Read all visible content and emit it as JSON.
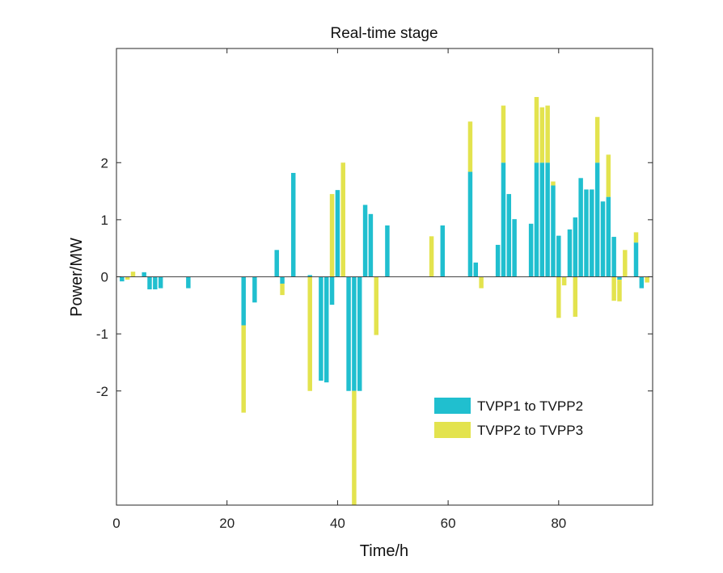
{
  "chart_data": {
    "type": "bar",
    "stacked": true,
    "title": "Real-time stage",
    "xlabel": "Time/h",
    "ylabel": "Power/MW",
    "xlim": [
      0,
      97
    ],
    "ylim": [
      -4,
      4
    ],
    "xticks": [
      0,
      20,
      40,
      60,
      80
    ],
    "yticks": [
      -2,
      -1,
      0,
      1,
      2
    ],
    "xtick_labels": [
      "0",
      "20",
      "40",
      "60",
      "80"
    ],
    "ytick_labels": [
      "-2",
      "-1",
      "0",
      "1",
      "2"
    ],
    "grid": false,
    "legend_position": "bottom-right",
    "x": [
      1,
      2,
      3,
      4,
      5,
      6,
      7,
      8,
      9,
      10,
      11,
      12,
      13,
      14,
      15,
      16,
      17,
      18,
      19,
      20,
      21,
      22,
      23,
      24,
      25,
      26,
      27,
      28,
      29,
      30,
      31,
      32,
      33,
      34,
      35,
      36,
      37,
      38,
      39,
      40,
      41,
      42,
      43,
      44,
      45,
      46,
      47,
      48,
      49,
      50,
      51,
      52,
      53,
      54,
      55,
      56,
      57,
      58,
      59,
      60,
      61,
      62,
      63,
      64,
      65,
      66,
      67,
      68,
      69,
      70,
      71,
      72,
      73,
      74,
      75,
      76,
      77,
      78,
      79,
      80,
      81,
      82,
      83,
      84,
      85,
      86,
      87,
      88,
      89,
      90,
      91,
      92,
      93,
      94,
      95,
      96
    ],
    "series": [
      {
        "name": "TVPP1 to TVPP2",
        "color": "#20BFCF",
        "values": [
          -0.08,
          0,
          0,
          0,
          0.08,
          -0.22,
          -0.22,
          -0.2,
          0,
          0,
          0,
          0,
          -0.2,
          0,
          0,
          0,
          0,
          0,
          0,
          0,
          0,
          0,
          -0.85,
          0,
          -0.45,
          0,
          0,
          0,
          0.47,
          -0.12,
          0,
          1.82,
          0,
          0,
          0.03,
          0,
          -1.82,
          -1.85,
          -0.49,
          1.52,
          0,
          -2.0,
          -2.0,
          -2.0,
          1.26,
          1.1,
          0,
          0,
          0.9,
          0,
          0,
          0,
          0,
          0,
          0,
          0,
          0,
          0,
          0.9,
          0,
          0,
          0,
          0,
          1.84,
          0.25,
          0,
          0,
          0,
          0.56,
          2.0,
          1.45,
          1.01,
          0,
          0,
          0.93,
          2.0,
          2.0,
          2.0,
          1.6,
          0.72,
          0,
          0.83,
          1.04,
          1.73,
          1.53,
          1.53,
          2.0,
          1.32,
          1.4,
          0.7,
          -0.05,
          0,
          0,
          0.6,
          -0.2,
          0
        ]
      },
      {
        "name": "TVPP2 to TVPP3",
        "color": "#E3E34E",
        "values": [
          0,
          -0.05,
          0.09,
          0,
          0,
          0,
          0,
          0,
          0,
          0,
          0,
          0,
          0,
          0,
          0,
          0,
          0,
          0,
          0,
          0,
          0,
          0,
          -1.53,
          0,
          0,
          0,
          0,
          0,
          0,
          -0.2,
          0,
          0,
          0,
          0,
          -2.0,
          0,
          0,
          0,
          1.45,
          0,
          2.0,
          0,
          -2.0,
          0,
          0,
          0,
          -1.02,
          0,
          0,
          0,
          0,
          0,
          0,
          0,
          0,
          0,
          0.71,
          0,
          0,
          0,
          0,
          0,
          0,
          0.88,
          0,
          -0.2,
          0,
          0,
          0,
          1.0,
          0,
          0,
          0,
          0,
          0,
          1.15,
          0.97,
          1.0,
          0.07,
          -0.72,
          -0.15,
          0,
          -0.7,
          0,
          0,
          0,
          0.8,
          0,
          0.74,
          -0.42,
          -0.38,
          0.47,
          0,
          0.18,
          0,
          -0.1
        ]
      }
    ]
  }
}
